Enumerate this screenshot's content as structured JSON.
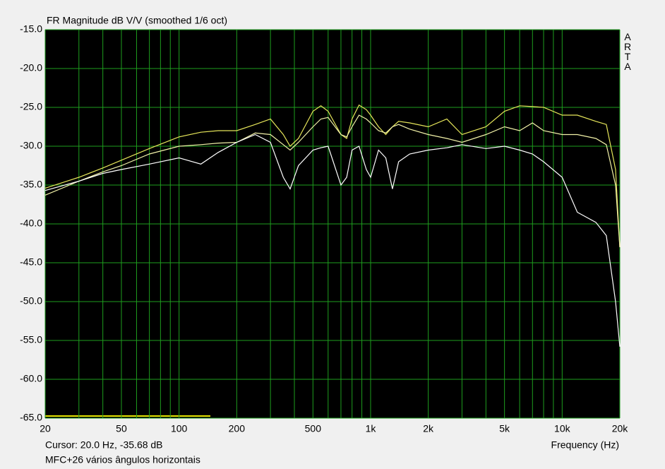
{
  "chart_data": {
    "type": "line",
    "title": "FR Magnitude dB V/V (smoothed 1/6 oct)",
    "side_label": "ARTA",
    "x_label": "Frequency (Hz)",
    "cursor_text": "Cursor: 20.0 Hz, -35.68 dB",
    "note": "MFC+26 vários ângulos horizontais",
    "x_scale": "log",
    "grid": true,
    "xlim": [
      20,
      20000
    ],
    "ylim": [
      -65,
      -15
    ],
    "xticks": [
      20,
      50,
      100,
      200,
      500,
      {
        "value": 1000,
        "label": "1k"
      },
      {
        "value": 2000,
        "label": "2k"
      },
      {
        "value": 5000,
        "label": "5k"
      },
      {
        "value": 10000,
        "label": "10k"
      },
      {
        "value": 20000,
        "label": "20k"
      }
    ],
    "x_minor_ticks": [
      30,
      40,
      60,
      70,
      80,
      90,
      300,
      400,
      600,
      700,
      800,
      900,
      3000,
      4000,
      6000,
      7000,
      8000,
      9000
    ],
    "yticks": [
      {
        "value": -15,
        "label": "-15.0"
      },
      {
        "value": -20,
        "label": "-20.0"
      },
      {
        "value": -25,
        "label": "-25.0"
      },
      {
        "value": -30,
        "label": "-30.0"
      },
      {
        "value": -35,
        "label": "-35.0"
      },
      {
        "value": -40,
        "label": "-40.0"
      },
      {
        "value": -45,
        "label": "-45.0"
      },
      {
        "value": -50,
        "label": "-50.0"
      },
      {
        "value": -55,
        "label": "-55.0"
      },
      {
        "value": -60,
        "label": "-60.0"
      },
      {
        "value": -65,
        "label": "-65.0"
      }
    ],
    "x": [
      20,
      30,
      40,
      50,
      70,
      100,
      130,
      160,
      200,
      250,
      300,
      350,
      380,
      420,
      500,
      550,
      600,
      700,
      750,
      800,
      870,
      950,
      1000,
      1100,
      1200,
      1300,
      1400,
      1600,
      2000,
      2500,
      3000,
      4000,
      5000,
      6000,
      7000,
      8000,
      10000,
      12000,
      15000,
      17000,
      19000,
      20000
    ],
    "series": [
      {
        "color": "#e6e65a",
        "values": [
          -35.4,
          -34,
          -32.8,
          -31.8,
          -30.3,
          -28.8,
          -28.2,
          -28,
          -28,
          -27.2,
          -26.5,
          -28.5,
          -30,
          -29,
          -25.5,
          -24.8,
          -25.5,
          -28.5,
          -29,
          -26.5,
          -24.7,
          -25.3,
          -26,
          -27.5,
          -28.5,
          -27.5,
          -26.8,
          -27,
          -27.5,
          -26.5,
          -28.5,
          -27.5,
          -25.5,
          -24.8,
          -24.9,
          -25,
          -26,
          -26,
          -26.8,
          -27.2,
          -33,
          -43
        ]
      },
      {
        "color": "#f2f2a8",
        "values": [
          -36.3,
          -34.5,
          -33.3,
          -32.5,
          -31,
          -30,
          -29.8,
          -29.6,
          -29.5,
          -28.3,
          -28.5,
          -29.8,
          -30.5,
          -29.5,
          -27.5,
          -26.5,
          -26.3,
          -28.5,
          -28.8,
          -27.5,
          -26,
          -26.5,
          -27,
          -28,
          -28.3,
          -27.5,
          -27.2,
          -27.8,
          -28.5,
          -29,
          -29.5,
          -28.5,
          -27.5,
          -28,
          -27,
          -28,
          -28.5,
          -28.5,
          -29,
          -29.8,
          -35,
          -43
        ]
      },
      {
        "color": "#ffffff",
        "values": [
          -35.7,
          -34.5,
          -33.5,
          -33,
          -32.3,
          -31.5,
          -32.3,
          -30.8,
          -29.5,
          -28.5,
          -29.5,
          -34,
          -35.5,
          -32.5,
          -30.5,
          -30.2,
          -30,
          -35,
          -34,
          -30.5,
          -30,
          -33,
          -34,
          -30.5,
          -31.5,
          -35.5,
          -32,
          -31,
          -30.5,
          -30.2,
          -29.8,
          -30.3,
          -30,
          -30.5,
          -31,
          -32,
          -34,
          -38.5,
          -39.8,
          -41.5,
          -50,
          -55.8
        ]
      }
    ]
  }
}
